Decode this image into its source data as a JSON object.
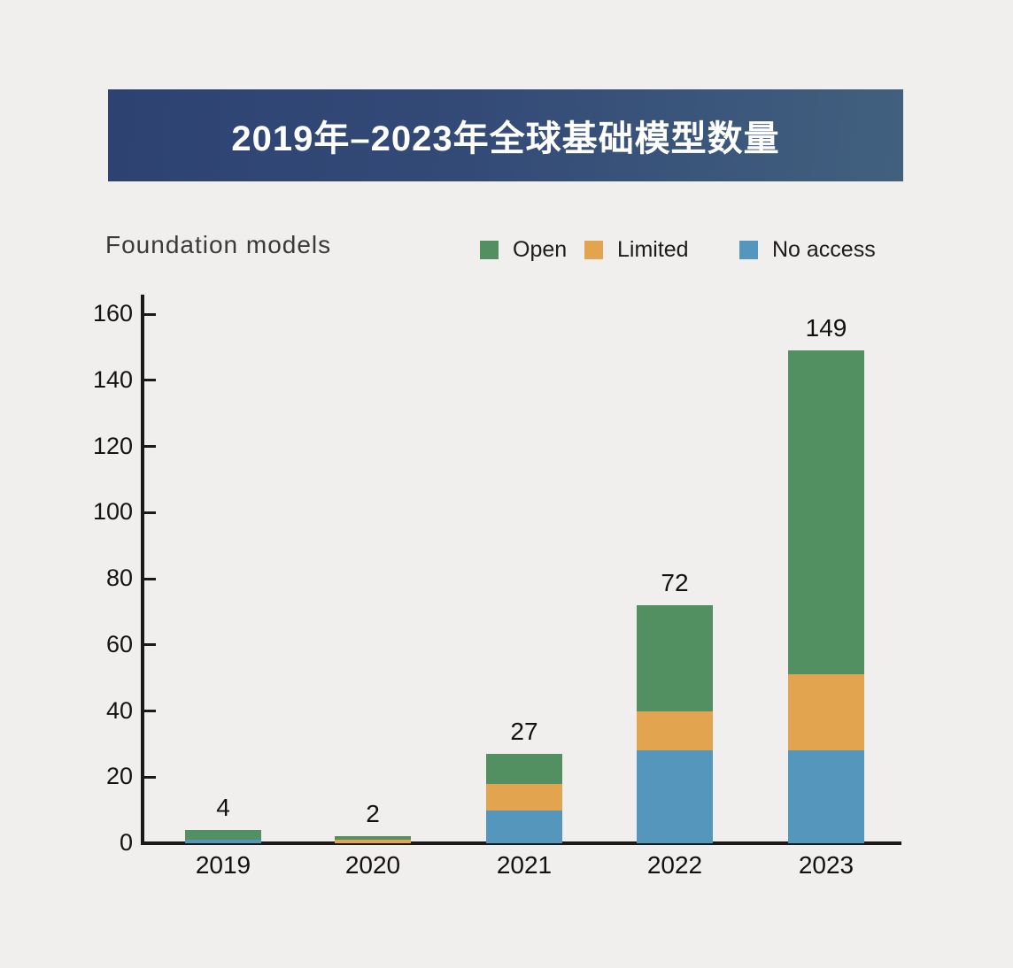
{
  "banner": {
    "title": "2019年–2023年全球基础模型数量",
    "bg_color_left": "#2d4271",
    "bg_color_right": "#41607e",
    "text_color": "#ffffff"
  },
  "subtitle": "Foundation models",
  "legend": [
    {
      "label": "Open",
      "color": "#529061"
    },
    {
      "label": "Limited",
      "color": "#e2a44f"
    },
    {
      "label": "No access",
      "color": "#5596bd"
    }
  ],
  "chart_data": {
    "type": "bar",
    "stacked": true,
    "title": "2019年–2023年全球基础模型数量",
    "ylabel": "Foundation models",
    "xlabel": "",
    "categories": [
      "2019",
      "2020",
      "2021",
      "2022",
      "2023"
    ],
    "series": [
      {
        "name": "Open",
        "color": "#529061",
        "values": [
          3,
          1,
          9,
          32,
          98
        ]
      },
      {
        "name": "Limited",
        "color": "#e2a44f",
        "values": [
          0,
          1,
          8,
          12,
          23
        ]
      },
      {
        "name": "No access",
        "color": "#5596bd",
        "values": [
          1,
          0,
          10,
          28,
          28
        ]
      }
    ],
    "stack_order_bottom_to_top": [
      "No access",
      "Limited",
      "Open"
    ],
    "totals": [
      4,
      2,
      27,
      72,
      149
    ],
    "y_ticks": [
      0,
      20,
      40,
      60,
      80,
      100,
      120,
      140,
      160
    ],
    "ylim": [
      0,
      160
    ],
    "grid": false,
    "legend_position": "top-right",
    "axis_color": "#1a1a1a",
    "background_color": "#f0efed"
  }
}
